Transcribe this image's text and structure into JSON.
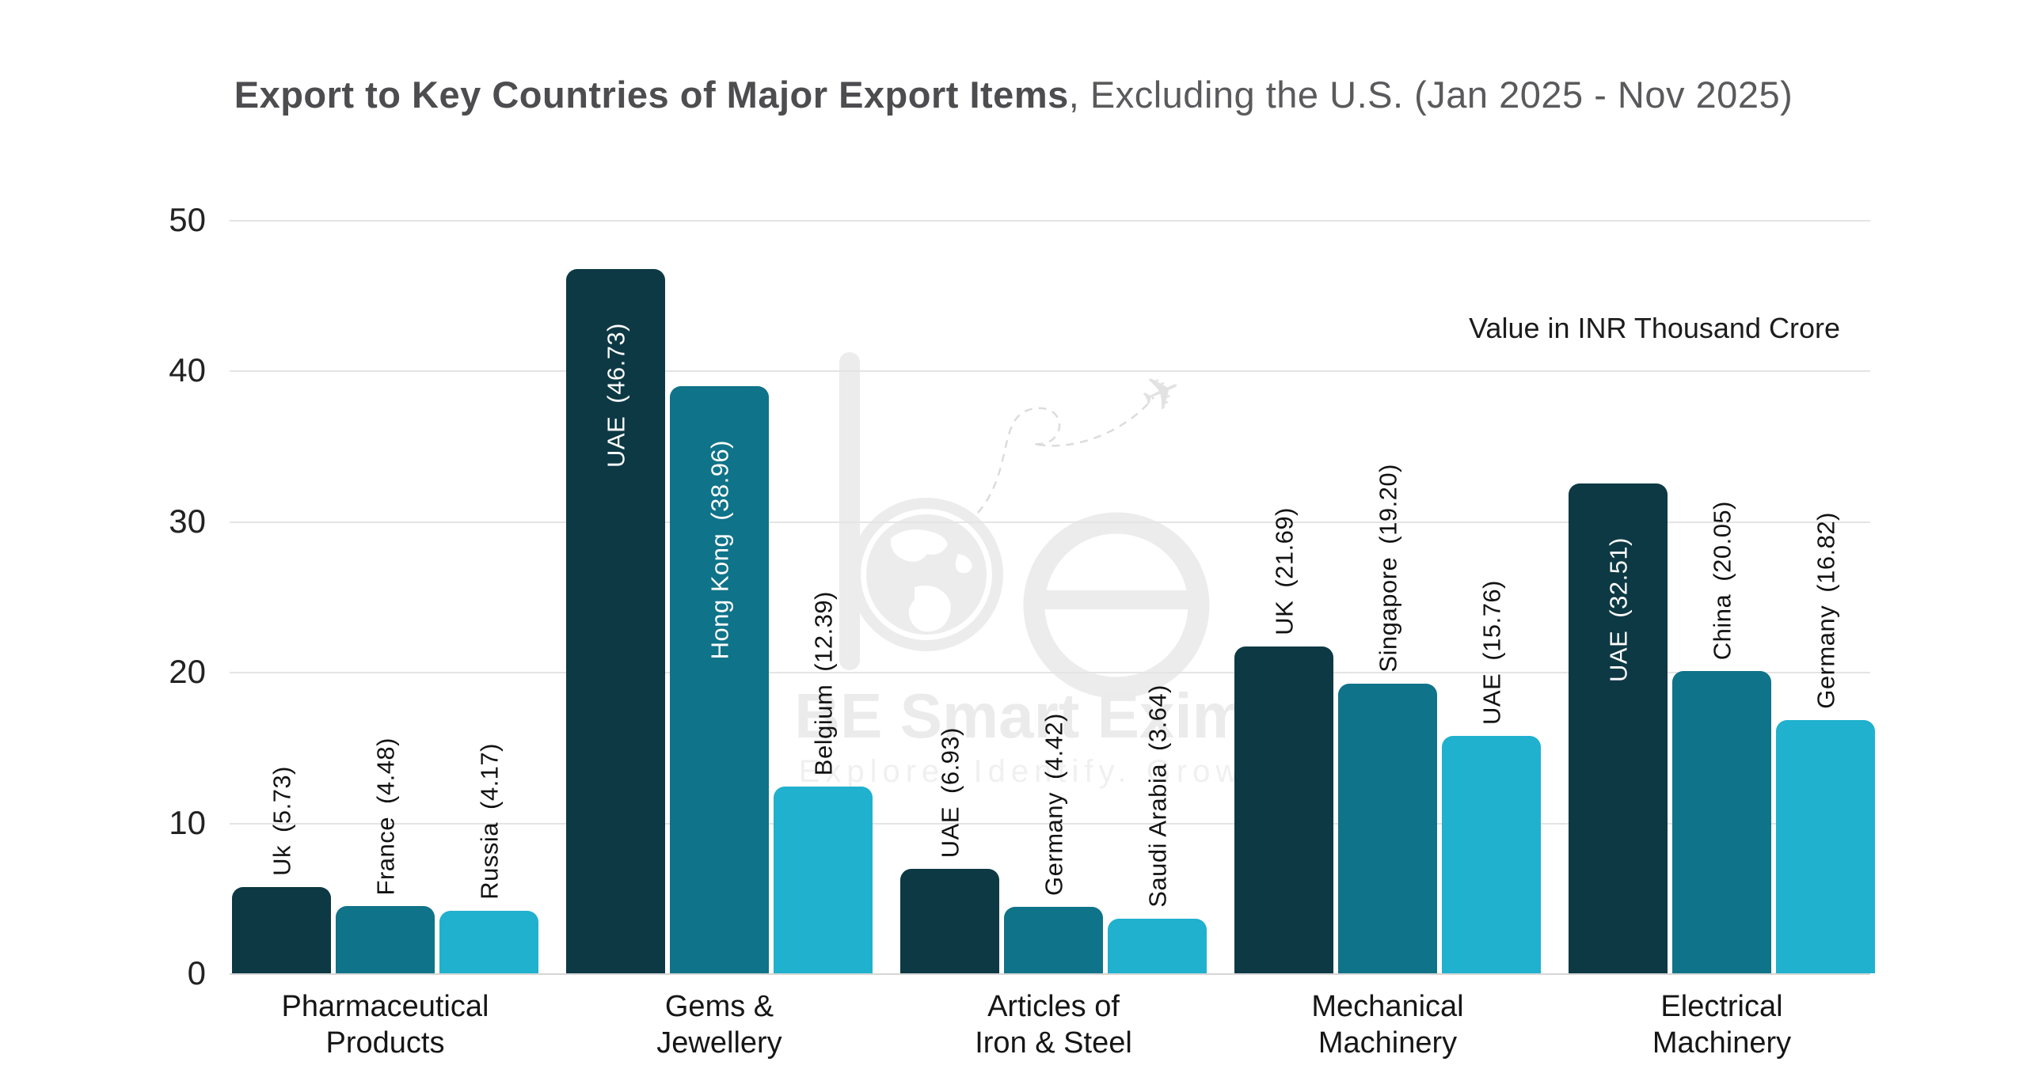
{
  "title": {
    "bold": "Export to Key Countries of Major Export Items",
    "rest": ", Excluding the U.S. (Jan 2025 - Nov 2025)"
  },
  "unit_note": "Value in INR Thousand Crore",
  "watermark": {
    "monogram": "be",
    "brand": "BE Smart Exim",
    "tagline": "Explore. Identify. Grow",
    "plane_icon": "✈"
  },
  "chart_data": {
    "type": "bar",
    "title": "Export to Key Countries of Major Export Items, Excluding the U.S. (Jan 2025 - Nov 2025)",
    "ylabel": "Value in INR Thousand Crore",
    "ylim": [
      0,
      50
    ],
    "yticks": [
      0,
      10,
      20,
      30,
      40,
      50
    ],
    "grid": true,
    "legend": "none",
    "bar_colors": [
      "#0d3944",
      "#0f7389",
      "#20b1ce"
    ],
    "groups": [
      {
        "category_lines": [
          "Pharmaceutical",
          "Products"
        ],
        "bars": [
          {
            "country": "Uk",
            "value": "5.73",
            "label_position": "above"
          },
          {
            "country": "France",
            "value": "4.48",
            "label_position": "above"
          },
          {
            "country": "Russia",
            "value": "4.17",
            "label_position": "above"
          }
        ]
      },
      {
        "category_lines": [
          "Gems &",
          "Jewellery"
        ],
        "bars": [
          {
            "country": "UAE",
            "value": "46.73",
            "label_position": "inside"
          },
          {
            "country": "Hong Kong",
            "value": "38.96",
            "label_position": "inside"
          },
          {
            "country": "Belgium",
            "value": "12.39",
            "label_position": "above"
          }
        ]
      },
      {
        "category_lines": [
          "Articles of",
          "Iron & Steel"
        ],
        "bars": [
          {
            "country": "UAE",
            "value": "6.93",
            "label_position": "above"
          },
          {
            "country": "Germany",
            "value": "4.42",
            "label_position": "above"
          },
          {
            "country": "Saudi Arabia",
            "value": "3.64",
            "label_position": "above"
          }
        ]
      },
      {
        "category_lines": [
          "Mechanical",
          "Machinery"
        ],
        "bars": [
          {
            "country": "UK",
            "value": "21.69",
            "label_position": "above"
          },
          {
            "country": "Singapore",
            "value": "19.20",
            "label_position": "above"
          },
          {
            "country": "UAE",
            "value": "15.76",
            "label_position": "above"
          }
        ]
      },
      {
        "category_lines": [
          "Electrical",
          "Machinery"
        ],
        "bars": [
          {
            "country": "UAE",
            "value": "32.51",
            "label_position": "inside"
          },
          {
            "country": "China",
            "value": "20.05",
            "label_position": "above"
          },
          {
            "country": "Germany",
            "value": "16.82",
            "label_position": "above"
          }
        ]
      }
    ]
  }
}
